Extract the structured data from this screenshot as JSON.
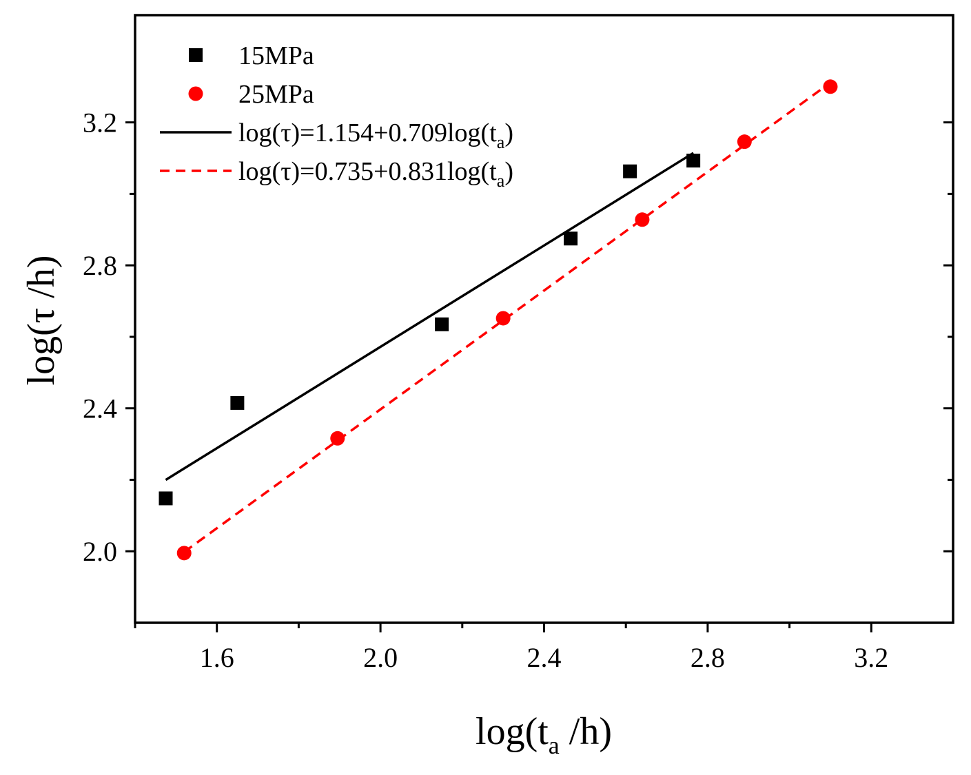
{
  "chart_data": {
    "type": "scatter",
    "title": "",
    "xlabel": {
      "main": "log(t",
      "sub": "a",
      "tail": " /h)"
    },
    "ylabel": "log(τ /h)",
    "xlim": [
      1.4,
      3.4
    ],
    "ylim": [
      1.8,
      3.5
    ],
    "xticks": [
      1.6,
      2.0,
      2.4,
      2.8,
      3.2
    ],
    "xtick_labels": [
      "1.6",
      "2.0",
      "2.4",
      "2.8",
      "3.2"
    ],
    "xminor": [
      1.4,
      1.8,
      2.2,
      2.6,
      3.0
    ],
    "yticks": [
      2.0,
      2.4,
      2.8,
      3.2
    ],
    "ytick_labels": [
      "2.0",
      "2.4",
      "2.8",
      "3.2"
    ],
    "yminor": [
      2.2,
      2.6,
      3.0
    ],
    "grid": false,
    "legend_position": "top-left",
    "series": [
      {
        "name": "15MPa",
        "kind": "points",
        "marker": "square",
        "color": "#000000",
        "x": [
          1.475,
          1.65,
          2.15,
          2.465,
          2.61,
          2.765
        ],
        "y": [
          2.148,
          2.415,
          2.635,
          2.875,
          3.063,
          3.093
        ]
      },
      {
        "name": "25MPa",
        "kind": "points",
        "marker": "circle",
        "color": "#ff0000",
        "x": [
          1.52,
          1.895,
          2.3,
          2.64,
          2.89,
          3.1
        ],
        "y": [
          1.995,
          2.316,
          2.652,
          2.928,
          3.146,
          3.3
        ]
      },
      {
        "name": "fit-15MPa",
        "kind": "line",
        "style": "solid",
        "color": "#000000",
        "intercept": 1.154,
        "slope": 0.709,
        "xrange": [
          1.475,
          2.765
        ],
        "legend": {
          "pre": "log(τ)=1.154+0.709log(t",
          "sub": "a",
          "post": ")"
        }
      },
      {
        "name": "fit-25MPa",
        "kind": "line",
        "style": "dashed",
        "color": "#ff0000",
        "intercept": 0.735,
        "slope": 0.831,
        "xrange": [
          1.52,
          3.1
        ],
        "legend": {
          "pre": "log(τ)=0.735+0.831log(t",
          "sub": "a",
          "post": ")"
        }
      }
    ]
  }
}
